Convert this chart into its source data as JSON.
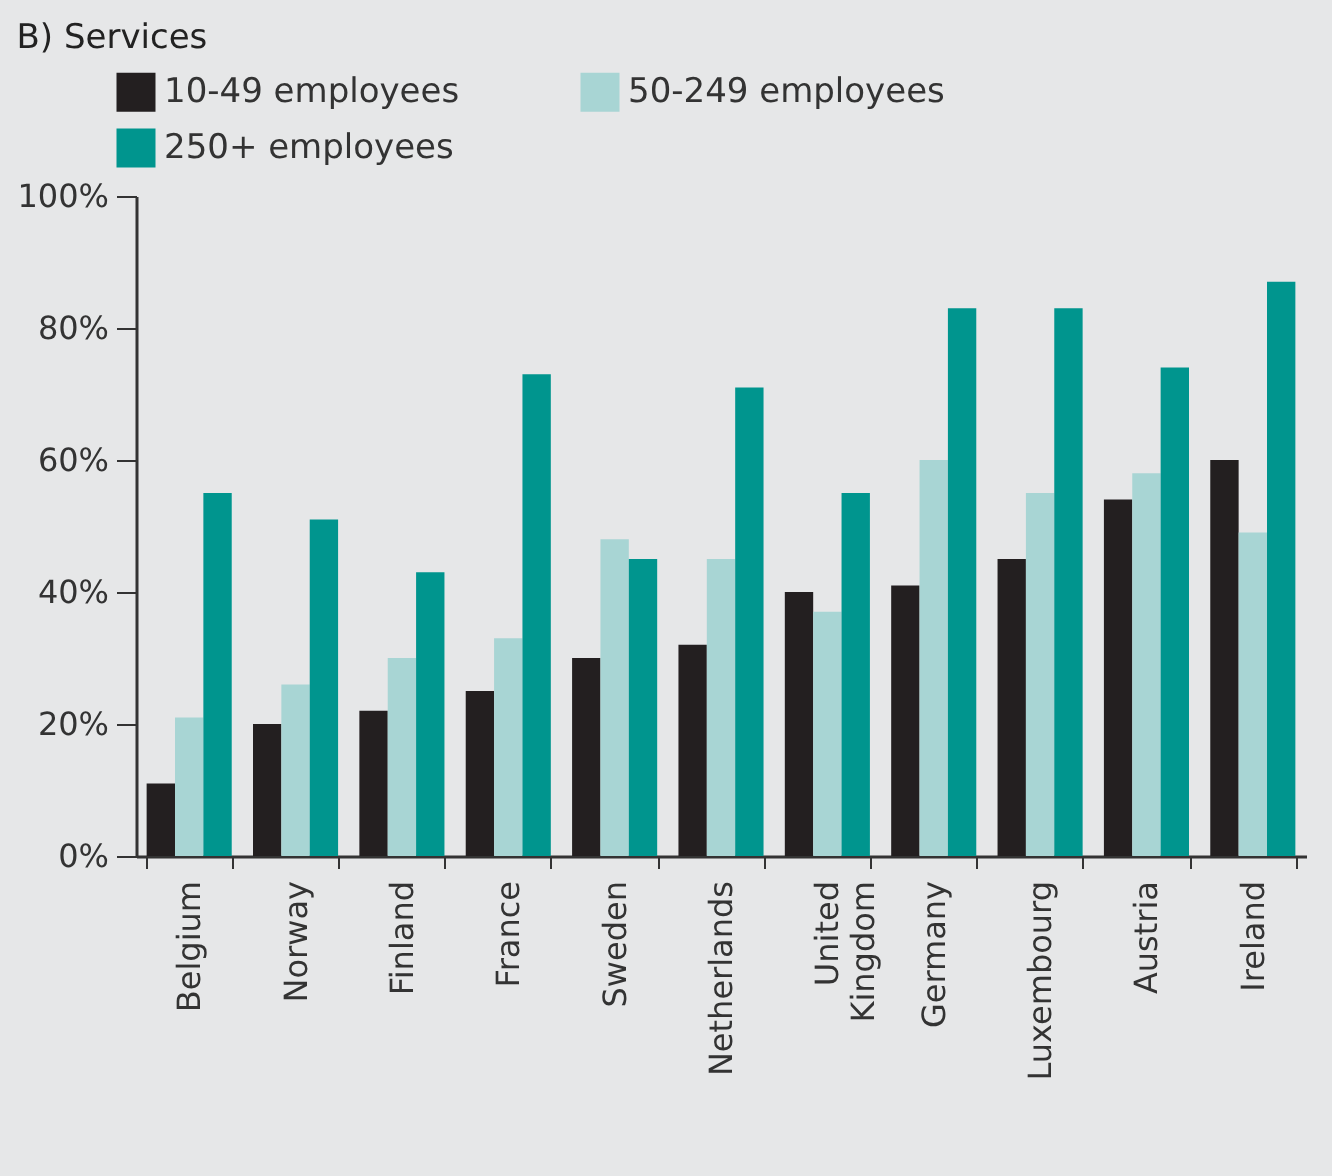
{
  "chart_data": {
    "type": "bar",
    "title": "B) Services",
    "categories": [
      "Belgium",
      "Norway",
      "Finland",
      "France",
      "Sweden",
      "Netherlands",
      "United Kingdom",
      "Germany",
      "Luxembourg",
      "Austria",
      "Ireland"
    ],
    "series": [
      {
        "name": "10-49 employees",
        "color": "#231f20",
        "values": [
          11,
          20,
          22,
          25,
          30,
          32,
          40,
          41,
          45,
          54,
          60
        ]
      },
      {
        "name": "50-249 employees",
        "color": "#a8d5d4",
        "values": [
          21,
          26,
          30,
          33,
          48,
          45,
          37,
          60,
          55,
          58,
          49
        ]
      },
      {
        "name": "250+ employees",
        "color": "#00958e",
        "values": [
          55,
          51,
          43,
          73,
          45,
          71,
          55,
          83,
          83,
          74,
          87
        ]
      }
    ],
    "ylim": [
      0,
      100
    ],
    "yticks": [
      {
        "value": 0,
        "label": "0%"
      },
      {
        "value": 20,
        "label": "20%"
      },
      {
        "value": 40,
        "label": "40%"
      },
      {
        "value": 60,
        "label": "60%"
      },
      {
        "value": 80,
        "label": "80%"
      },
      {
        "value": 100,
        "label": "100%"
      }
    ],
    "grid": false,
    "legend": "top left"
  }
}
